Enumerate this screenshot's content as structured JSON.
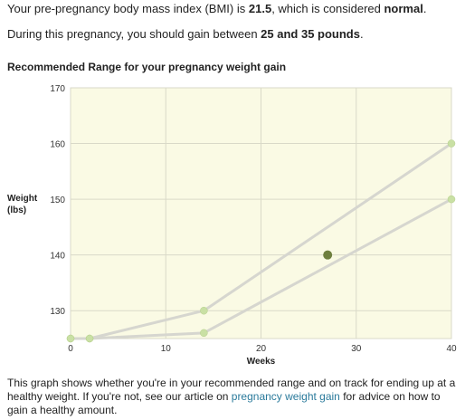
{
  "bmi_line": {
    "prefix": "Your pre-pregnancy body mass index (BMI) is ",
    "value": "21.5",
    "middle": ", which is considered ",
    "category": "normal",
    "suffix": "."
  },
  "gain_line": {
    "prefix": "During this pregnancy, you should gain between ",
    "range": "25 and 35 pounds",
    "suffix": "."
  },
  "caption": {
    "text_before": "This graph shows whether you're in your recommended range and on track for ending up at a healthy weight. If you're not, see our article on ",
    "link_text": "pregnancy weight gain",
    "text_after": " for advice on how to gain a healthy amount."
  },
  "colors": {
    "plot_background": "#fafae4",
    "gridline": "#d9d9c8",
    "range_line": "#d6d6cf",
    "range_marker": "#c9e0a4",
    "current_marker": "#6e7f3e",
    "link": "#2a7a9b"
  },
  "chart_data": {
    "type": "line",
    "title": "Recommended Range for your pregnancy weight gain",
    "xlabel": "Weeks",
    "ylabel": "Weight (lbs)",
    "ylabel_lines": [
      "Weight",
      "(lbs)"
    ],
    "xlim": [
      0,
      40
    ],
    "ylim": [
      125,
      170
    ],
    "xticks": [
      0,
      10,
      20,
      30,
      40
    ],
    "yticks": [
      130,
      140,
      150,
      160,
      170
    ],
    "grid": true,
    "series": [
      {
        "x": [
          0,
          2,
          14,
          40
        ],
        "values": [
          125,
          125,
          130,
          160
        ],
        "role": "upper"
      },
      {
        "x": [
          0,
          2,
          14,
          40
        ],
        "values": [
          125,
          125,
          126,
          150
        ],
        "role": "lower"
      }
    ],
    "current": {
      "x": 27,
      "y": 140
    }
  }
}
